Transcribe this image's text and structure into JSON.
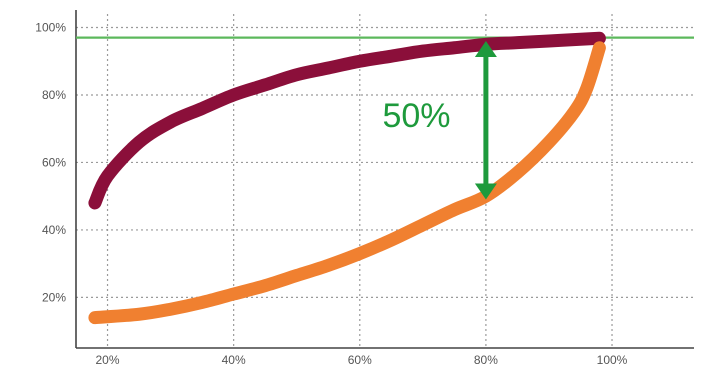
{
  "chart_data": {
    "type": "line",
    "title": "",
    "xlabel": "",
    "ylabel": "",
    "xlim": [
      15,
      113
    ],
    "ylim": [
      5,
      104
    ],
    "x_ticks": [
      20,
      40,
      60,
      80,
      100
    ],
    "x_tick_labels": [
      "20%",
      "40%",
      "60%",
      "80%",
      "100%"
    ],
    "y_ticks": [
      20,
      40,
      60,
      80,
      100
    ],
    "y_tick_labels": [
      "20%",
      "40%",
      "60%",
      "80%",
      "100%"
    ],
    "grid": true,
    "reference_line": {
      "y": 97,
      "color": "#5cb85c"
    },
    "series": [
      {
        "color": "#8b0f3a",
        "x": [
          18,
          20,
          25,
          30,
          35,
          40,
          45,
          50,
          55,
          60,
          65,
          70,
          75,
          80,
          85,
          90,
          95,
          98
        ],
        "y": [
          48,
          56,
          66,
          72,
          76,
          80,
          83,
          86,
          88,
          90,
          91.5,
          93,
          94,
          95,
          95.5,
          96,
          96.5,
          96.8
        ]
      },
      {
        "color": "#f08030",
        "x": [
          18,
          25,
          30,
          35,
          40,
          45,
          50,
          55,
          60,
          65,
          70,
          75,
          80,
          85,
          90,
          94,
          96,
          98
        ],
        "y": [
          14,
          15,
          16.5,
          18.5,
          21,
          23.5,
          26.5,
          29.5,
          33,
          37,
          41.5,
          46,
          50,
          57,
          66,
          75,
          82,
          94
        ]
      }
    ],
    "annotation": {
      "text": "50%",
      "x": 80,
      "y_from": 49,
      "y_to": 96,
      "label_x": 69,
      "label_y": 74,
      "color": "#1e9a3c"
    }
  }
}
